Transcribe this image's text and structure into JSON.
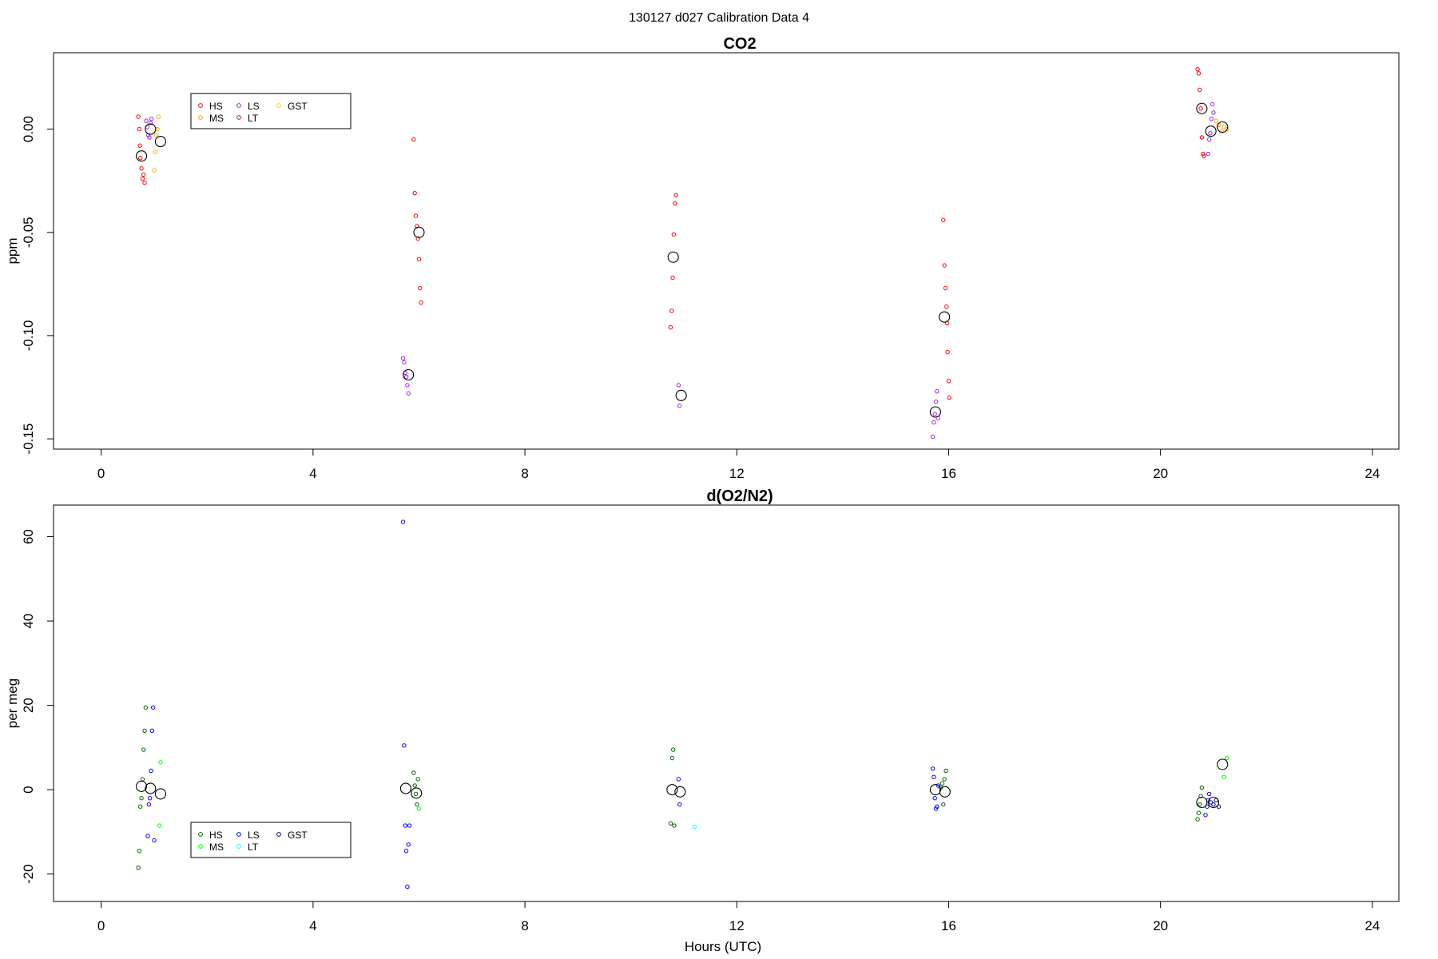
{
  "figure_title": "130127   d027   Calibration Data 4",
  "chart_data": [
    {
      "type": "scatter",
      "title": "CO2",
      "xlabel": "",
      "ylabel": "ppm",
      "xlim": [
        -0.9,
        24.5
      ],
      "ylim": [
        -0.155,
        0.037
      ],
      "xticks": [
        0,
        4,
        8,
        12,
        16,
        20,
        24
      ],
      "yticks": [
        -0.15,
        -0.1,
        -0.05,
        0.0
      ],
      "ytick_labels": [
        "-0.15",
        "-0.10",
        "-0.05",
        "0.00"
      ],
      "legend": {
        "placement": "top-left",
        "entries": [
          {
            "label": "HS",
            "color": "#ff0000"
          },
          {
            "label": "MS",
            "color": "#ffa500"
          },
          {
            "label": "LS",
            "color": "#a020f0"
          },
          {
            "label": "LT",
            "color": "#b22222"
          },
          {
            "label": "GST",
            "color": "#ffd700"
          }
        ]
      },
      "series": [
        {
          "name": "HS",
          "color": "#ff0000",
          "points": [
            [
              0.7,
              0.006
            ],
            [
              0.72,
              0.0
            ],
            [
              0.73,
              -0.008
            ],
            [
              0.74,
              -0.014
            ],
            [
              0.76,
              -0.019
            ],
            [
              0.78,
              -0.024
            ],
            [
              0.8,
              -0.022
            ],
            [
              0.82,
              -0.026
            ],
            [
              5.9,
              -0.005
            ],
            [
              5.92,
              -0.031
            ],
            [
              5.94,
              -0.042
            ],
            [
              5.96,
              -0.047
            ],
            [
              5.98,
              -0.053
            ],
            [
              6.0,
              -0.063
            ],
            [
              6.02,
              -0.077
            ],
            [
              6.04,
              -0.084
            ],
            [
              10.75,
              -0.096
            ],
            [
              10.77,
              -0.088
            ],
            [
              10.79,
              -0.072
            ],
            [
              10.81,
              -0.051
            ],
            [
              10.83,
              -0.036
            ],
            [
              10.85,
              -0.032
            ],
            [
              15.9,
              -0.044
            ],
            [
              15.92,
              -0.066
            ],
            [
              15.94,
              -0.077
            ],
            [
              15.96,
              -0.086
            ],
            [
              15.97,
              -0.094
            ],
            [
              15.98,
              -0.108
            ],
            [
              16.0,
              -0.122
            ],
            [
              16.01,
              -0.13
            ],
            [
              20.7,
              0.029
            ],
            [
              20.72,
              0.027
            ],
            [
              20.74,
              0.019
            ],
            [
              20.76,
              0.01
            ],
            [
              20.78,
              -0.004
            ],
            [
              20.8,
              -0.012
            ],
            [
              20.82,
              -0.013
            ]
          ]
        },
        {
          "name": "MS",
          "color": "#ffa500",
          "points": [
            [
              1.0,
              -0.02
            ],
            [
              1.02,
              -0.011
            ],
            [
              1.04,
              -0.003
            ],
            [
              1.06,
              0.0
            ],
            [
              1.08,
              0.006
            ],
            [
              21.05,
              0.004
            ],
            [
              21.1,
              0.002
            ],
            [
              21.15,
              -0.001
            ],
            [
              21.2,
              0.001
            ],
            [
              21.25,
              0.0
            ]
          ]
        },
        {
          "name": "LS",
          "color": "#a020f0",
          "points": [
            [
              0.85,
              0.004
            ],
            [
              0.87,
              0.001
            ],
            [
              0.89,
              -0.003
            ],
            [
              0.91,
              -0.004
            ],
            [
              0.93,
              0.003
            ],
            [
              0.95,
              0.005
            ],
            [
              5.7,
              -0.111
            ],
            [
              5.72,
              -0.113
            ],
            [
              5.74,
              -0.118
            ],
            [
              5.76,
              -0.12
            ],
            [
              5.78,
              -0.124
            ],
            [
              5.8,
              -0.128
            ],
            [
              10.9,
              -0.124
            ],
            [
              10.92,
              -0.134
            ],
            [
              15.7,
              -0.149
            ],
            [
              15.72,
              -0.142
            ],
            [
              15.74,
              -0.138
            ],
            [
              15.76,
              -0.132
            ],
            [
              15.78,
              -0.127
            ],
            [
              15.8,
              -0.14
            ],
            [
              20.9,
              -0.012
            ],
            [
              20.92,
              -0.005
            ],
            [
              20.94,
              -0.002
            ],
            [
              20.96,
              0.005
            ],
            [
              20.98,
              0.012
            ],
            [
              21.0,
              0.008
            ]
          ]
        },
        {
          "name": "LT",
          "color": "#b22222",
          "points": []
        },
        {
          "name": "GST",
          "color": "#ffd700",
          "points": []
        },
        {
          "name": "mean",
          "color": "#000000",
          "large": true,
          "points": [
            [
              0.76,
              -0.013
            ],
            [
              0.93,
              0.0
            ],
            [
              1.12,
              -0.006
            ],
            [
              5.8,
              -0.119
            ],
            [
              6.0,
              -0.05
            ],
            [
              10.8,
              -0.062
            ],
            [
              10.95,
              -0.129
            ],
            [
              15.75,
              -0.137
            ],
            [
              15.92,
              -0.091
            ],
            [
              20.78,
              0.01
            ],
            [
              20.95,
              -0.001
            ],
            [
              21.17,
              0.001
            ]
          ]
        }
      ]
    },
    {
      "type": "scatter",
      "title": "d(O2/N2)",
      "xlabel": "Hours (UTC)",
      "ylabel": "per meg",
      "xlim": [
        -0.9,
        24.5
      ],
      "ylim": [
        -26.5,
        67.5
      ],
      "xticks": [
        0,
        4,
        8,
        12,
        16,
        20,
        24
      ],
      "yticks": [
        -20,
        0,
        20,
        40,
        60
      ],
      "ytick_labels": [
        "-20",
        "0",
        "20",
        "40",
        "60"
      ],
      "legend": {
        "placement": "bottom-left",
        "entries": [
          {
            "label": "HS",
            "color": "#006400"
          },
          {
            "label": "MS",
            "color": "#00ff00"
          },
          {
            "label": "LS",
            "color": "#0000ff"
          },
          {
            "label": "LT",
            "color": "#00ffff"
          },
          {
            "label": "GST",
            "color": "#00008b"
          }
        ]
      },
      "series": [
        {
          "name": "HS",
          "color": "#006400",
          "points": [
            [
              0.7,
              -18.5
            ],
            [
              0.72,
              -14.5
            ],
            [
              0.74,
              -4.0
            ],
            [
              0.76,
              -2.0
            ],
            [
              0.78,
              2.5
            ],
            [
              0.8,
              9.5
            ],
            [
              0.82,
              14.0
            ],
            [
              0.84,
              19.5
            ],
            [
              5.9,
              4.0
            ],
            [
              5.92,
              1.0
            ],
            [
              5.94,
              -1.0
            ],
            [
              5.96,
              -3.5
            ],
            [
              5.98,
              2.5
            ],
            [
              10.75,
              -8.0
            ],
            [
              10.78,
              7.5
            ],
            [
              10.8,
              9.5
            ],
            [
              10.82,
              -8.5
            ],
            [
              15.85,
              0.5
            ],
            [
              15.88,
              1.5
            ],
            [
              15.9,
              -3.5
            ],
            [
              15.92,
              2.5
            ],
            [
              15.95,
              4.5
            ],
            [
              20.7,
              -7.0
            ],
            [
              20.72,
              -5.5
            ],
            [
              20.74,
              -3.5
            ],
            [
              20.76,
              -1.5
            ],
            [
              20.78,
              0.5
            ]
          ]
        },
        {
          "name": "MS",
          "color": "#00ff00",
          "points": [
            [
              1.1,
              -8.5
            ],
            [
              1.12,
              6.5
            ],
            [
              6.0,
              -4.5
            ],
            [
              21.2,
              3.0
            ],
            [
              21.25,
              7.5
            ]
          ]
        },
        {
          "name": "LS",
          "color": "#0000ff",
          "points": [
            [
              0.88,
              -11.0
            ],
            [
              0.9,
              -3.5
            ],
            [
              0.92,
              -2.0
            ],
            [
              0.94,
              4.5
            ],
            [
              0.96,
              14.0
            ],
            [
              0.98,
              19.5
            ],
            [
              1.0,
              -12.0
            ],
            [
              5.7,
              63.5
            ],
            [
              5.72,
              10.5
            ],
            [
              5.74,
              -8.5
            ],
            [
              5.76,
              -14.5
            ],
            [
              5.78,
              -23.0
            ],
            [
              5.8,
              -13.0
            ],
            [
              5.82,
              -8.5
            ],
            [
              10.9,
              2.5
            ],
            [
              10.92,
              -3.5
            ],
            [
              15.7,
              5.0
            ],
            [
              15.72,
              3.0
            ],
            [
              15.74,
              -2.0
            ],
            [
              15.76,
              -4.5
            ],
            [
              15.78,
              -4.0
            ],
            [
              15.8,
              1.0
            ],
            [
              20.85,
              -6.0
            ],
            [
              20.88,
              -4.0
            ],
            [
              20.9,
              -2.5
            ],
            [
              20.92,
              -1.0
            ],
            [
              20.95,
              -3.0
            ]
          ]
        },
        {
          "name": "LT",
          "color": "#00ffff",
          "points": [
            [
              11.2,
              -8.8
            ]
          ]
        },
        {
          "name": "GST",
          "color": "#00008b",
          "points": [
            [
              21.0,
              -3.5
            ],
            [
              21.05,
              -2.5
            ],
            [
              21.1,
              -4.0
            ]
          ]
        },
        {
          "name": "mean",
          "color": "#000000",
          "large": true,
          "points": [
            [
              0.76,
              0.8
            ],
            [
              0.93,
              0.3
            ],
            [
              1.12,
              -1.0
            ],
            [
              5.75,
              0.3
            ],
            [
              5.95,
              -0.8
            ],
            [
              10.78,
              0.0
            ],
            [
              10.93,
              -0.5
            ],
            [
              15.75,
              0.0
            ],
            [
              15.93,
              -0.5
            ],
            [
              20.78,
              -3.0
            ],
            [
              21.0,
              -3.0
            ],
            [
              21.17,
              6.0
            ]
          ]
        }
      ]
    }
  ]
}
